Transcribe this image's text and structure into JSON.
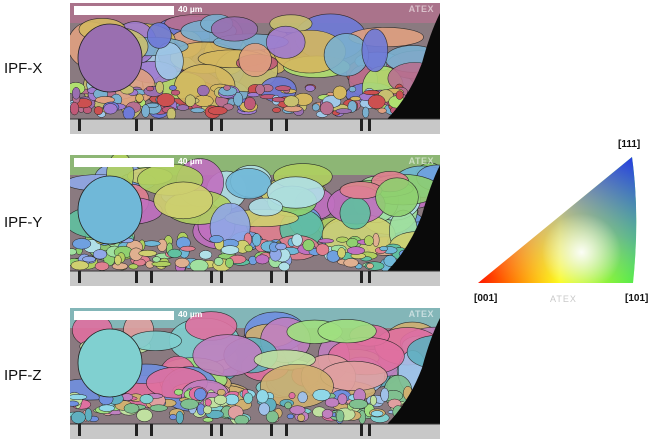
{
  "maps": [
    {
      "label": "IPF-X",
      "scale_label": "40 µm",
      "brand": "ATEX",
      "palette": [
        "#b87090",
        "#c05a78",
        "#9a6fb0",
        "#6f7ad8",
        "#d4b860",
        "#c8c070",
        "#a07bd0",
        "#e0a080",
        "#7ab0d0",
        "#b0e070",
        "#a0c8e8",
        "#cc5050"
      ]
    },
    {
      "label": "IPF-Y",
      "scale_label": "40 µm",
      "brand": "ATEX",
      "palette": [
        "#8fd070",
        "#b0d060",
        "#70b8d8",
        "#6fa0e0",
        "#e08090",
        "#c070c0",
        "#a0e0a0",
        "#d0d070",
        "#60c0a0",
        "#e0b090",
        "#90a8e8",
        "#b0e0e8"
      ]
    },
    {
      "label": "IPF-Z",
      "scale_label": "40 µm",
      "brand": "ATEX",
      "palette": [
        "#80d0d0",
        "#a0c0e8",
        "#c080c0",
        "#80c090",
        "#e0a0a0",
        "#a0e080",
        "#7090e0",
        "#d0b070",
        "#60b0c0",
        "#c0e0a0",
        "#e070a0",
        "#90d8e8"
      ]
    }
  ],
  "legend": {
    "top_label": "[111]",
    "left_label": "[001]",
    "right_label": "[101]",
    "brand": "ATEX",
    "colors": {
      "c001": "#ff0000",
      "c101": "#00ff00",
      "c111": "#0000ff"
    }
  }
}
